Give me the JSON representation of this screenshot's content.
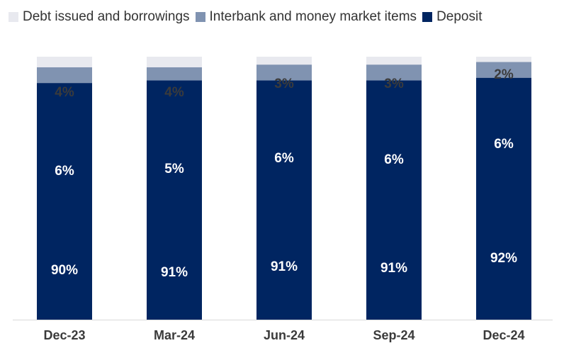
{
  "chart_data": {
    "type": "bar",
    "stacked": true,
    "categories": [
      "Dec-23",
      "Mar-24",
      "Jun-24",
      "Sep-24",
      "Dec-24"
    ],
    "series": [
      {
        "name": "Deposit",
        "values": [
          90,
          91,
          91,
          91,
          92
        ],
        "labels": [
          "90%",
          "91%",
          "91%",
          "91%",
          "92%"
        ],
        "color": "#002561",
        "label_color": "#ffffff"
      },
      {
        "name": "Interbank and money market items",
        "values": [
          6,
          5,
          6,
          6,
          6
        ],
        "labels": [
          "6%",
          "5%",
          "6%",
          "6%",
          "6%"
        ],
        "color": "#8093b1",
        "label_color": "#ffffff"
      },
      {
        "name": "Debt issued and borrowings",
        "values": [
          4,
          4,
          3,
          3,
          2
        ],
        "labels": [
          "4%",
          "4%",
          "3%",
          "3%",
          "2%"
        ],
        "color": "#e8e9ef",
        "label_color": "#3b3b3b"
      }
    ],
    "legend_order": [
      "Debt issued and borrowings",
      "Interbank and money market items",
      "Deposit"
    ],
    "legend_position": "top",
    "title": "",
    "xlabel": "",
    "ylabel": "",
    "ylim": [
      0,
      100
    ]
  }
}
